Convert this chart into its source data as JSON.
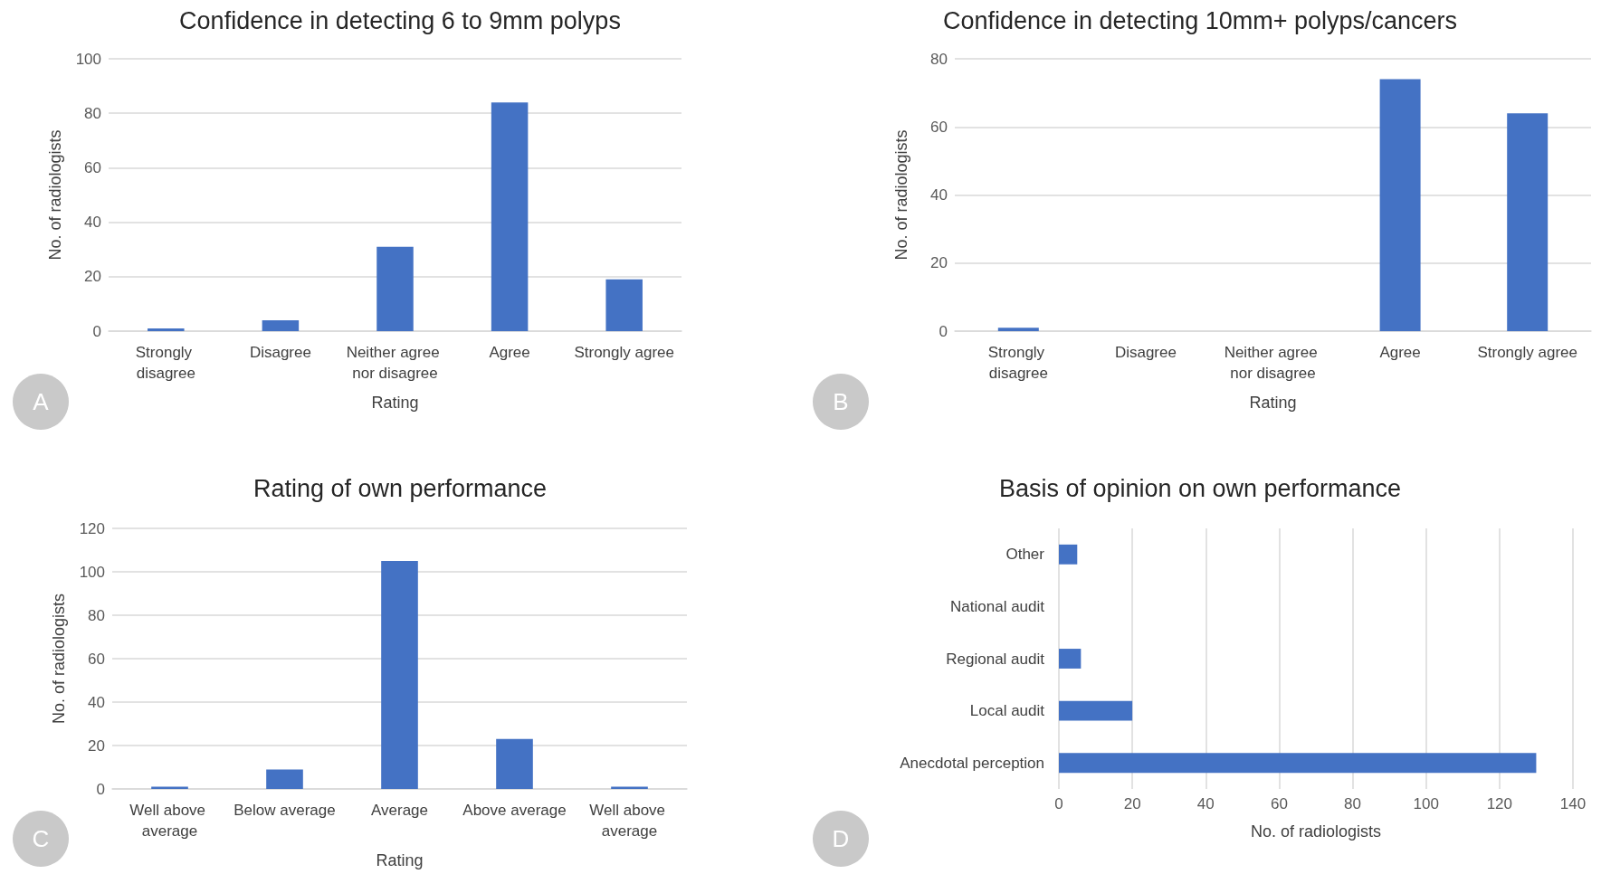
{
  "chart_data": [
    {
      "type": "bar",
      "title": "Confidence in detecting 6 to 9mm polyps",
      "xlabel": "Rating",
      "ylabel": "No. of radiologists",
      "categories": [
        "Strongly disagree",
        "Disagree",
        "Neither agree nor disagree",
        "Agree",
        "Strongly agree"
      ],
      "values": [
        1,
        4,
        31,
        84,
        19
      ],
      "color": "#4472c4",
      "ylim": [
        0,
        100
      ],
      "yticks": [
        0,
        20,
        40,
        60,
        80,
        100
      ],
      "grid": "y",
      "annotations": [
        "A"
      ]
    },
    {
      "type": "bar",
      "title": "Confidence in detecting 10mm+ polyps/cancers",
      "xlabel": "Rating",
      "ylabel": "No. of radiologists",
      "categories": [
        "Strongly disagree",
        "Disagree",
        "Neither agree nor disagree",
        "Agree",
        "Strongly agree"
      ],
      "values": [
        1,
        0,
        0,
        74,
        64
      ],
      "color": "#4472c4",
      "ylim": [
        0,
        80
      ],
      "yticks": [
        0,
        20,
        40,
        60,
        80
      ],
      "grid": "y",
      "annotations": [
        "B"
      ]
    },
    {
      "type": "bar",
      "title": "Rating of own performance",
      "xlabel": "Rating",
      "ylabel": "No. of radiologists",
      "categories": [
        "Well above average",
        "Below average",
        "Average",
        "Above average",
        "Well above average"
      ],
      "values": [
        1,
        9,
        105,
        23,
        1
      ],
      "color": "#4472c4",
      "ylim": [
        0,
        120
      ],
      "yticks": [
        0,
        20,
        40,
        60,
        80,
        100,
        120
      ],
      "grid": "y",
      "annotations": [
        "C"
      ]
    },
    {
      "type": "bar",
      "orientation": "horizontal",
      "title": "Basis of opinion on own performance",
      "xlabel": "No. of radiologists",
      "categories": [
        "Other",
        "National audit",
        "Regional audit",
        "Local audit",
        "Anecdotal perception"
      ],
      "values": [
        5,
        0,
        6,
        20,
        130
      ],
      "color": "#4472c4",
      "xlim": [
        0,
        140
      ],
      "xticks": [
        0,
        20,
        40,
        60,
        80,
        100,
        120,
        140
      ],
      "grid": "x",
      "annotations": [
        "D"
      ]
    }
  ]
}
